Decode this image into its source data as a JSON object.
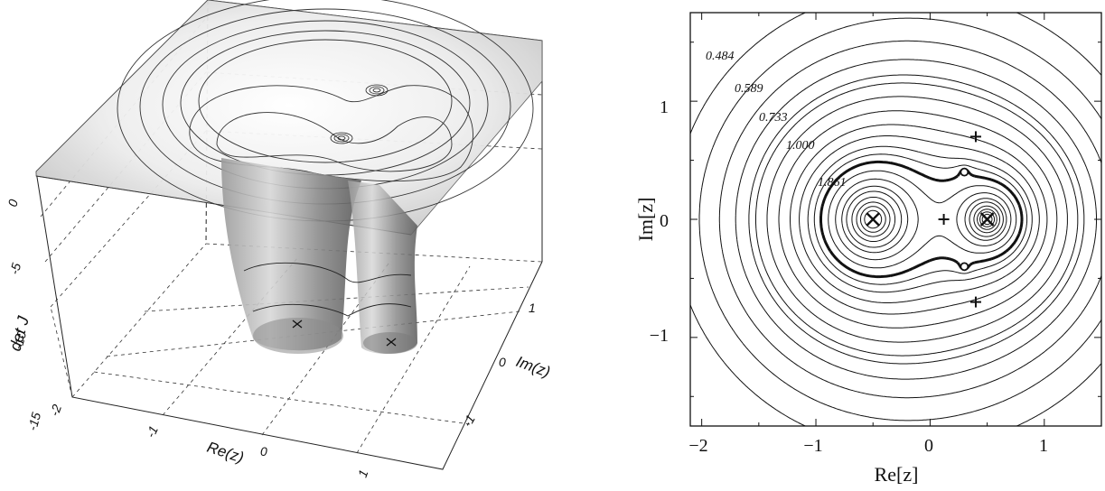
{
  "figure": {
    "left": {
      "z_axis_label": "det J",
      "x_axis_label": "Re(z)",
      "y_axis_label": "Im(z)",
      "z_ticks": [
        "0",
        "-5",
        "-10",
        "-15"
      ],
      "x_ticks": [
        "-2",
        "-1",
        "0",
        "1"
      ],
      "y_ticks": [
        "1",
        "0",
        "-1"
      ]
    },
    "right": {
      "x_axis_label": "Re[z]",
      "y_axis_label": "Im[z]",
      "x_ticks": [
        "−2",
        "−1",
        "0",
        "1"
      ],
      "y_ticks": [
        "1",
        "0",
        "−1"
      ],
      "contour_labels": [
        "0.484",
        "0.589",
        "0.733",
        "1.000",
        "1.861"
      ]
    }
  },
  "chart_data": [
    {
      "type": "surface",
      "zlabel": "det J",
      "xlabel": "Re(z)",
      "ylabel": "Im(z)",
      "xlim": [
        -2,
        1.5
      ],
      "ylim": [
        -1.5,
        1.5
      ],
      "zlim": [
        -15,
        0
      ],
      "markers": [
        {
          "symbol": "×",
          "x": -0.5,
          "y": 0
        },
        {
          "symbol": "×",
          "x": 0.5,
          "y": 0
        }
      ]
    },
    {
      "type": "contour",
      "xlabel": "Re[z]",
      "ylabel": "Im[z]",
      "xlim": [
        -2.1,
        1.5
      ],
      "ylim": [
        -1.75,
        1.75
      ],
      "contour_levels_labeled": [
        0.484,
        0.589,
        0.733,
        1.0,
        1.861
      ],
      "highlighted_level": 1.0,
      "markers": [
        {
          "symbol": "×",
          "x": -0.5,
          "y": 0
        },
        {
          "symbol": "×",
          "x": 0.5,
          "y": 0
        },
        {
          "symbol": "+",
          "x": 0.12,
          "y": 0
        },
        {
          "symbol": "+",
          "x": 0.4,
          "y": 0.7
        },
        {
          "symbol": "+",
          "x": 0.4,
          "y": -0.7
        },
        {
          "symbol": "o",
          "x": 0.3,
          "y": 0.4
        },
        {
          "symbol": "o",
          "x": 0.3,
          "y": -0.4
        }
      ]
    }
  ]
}
